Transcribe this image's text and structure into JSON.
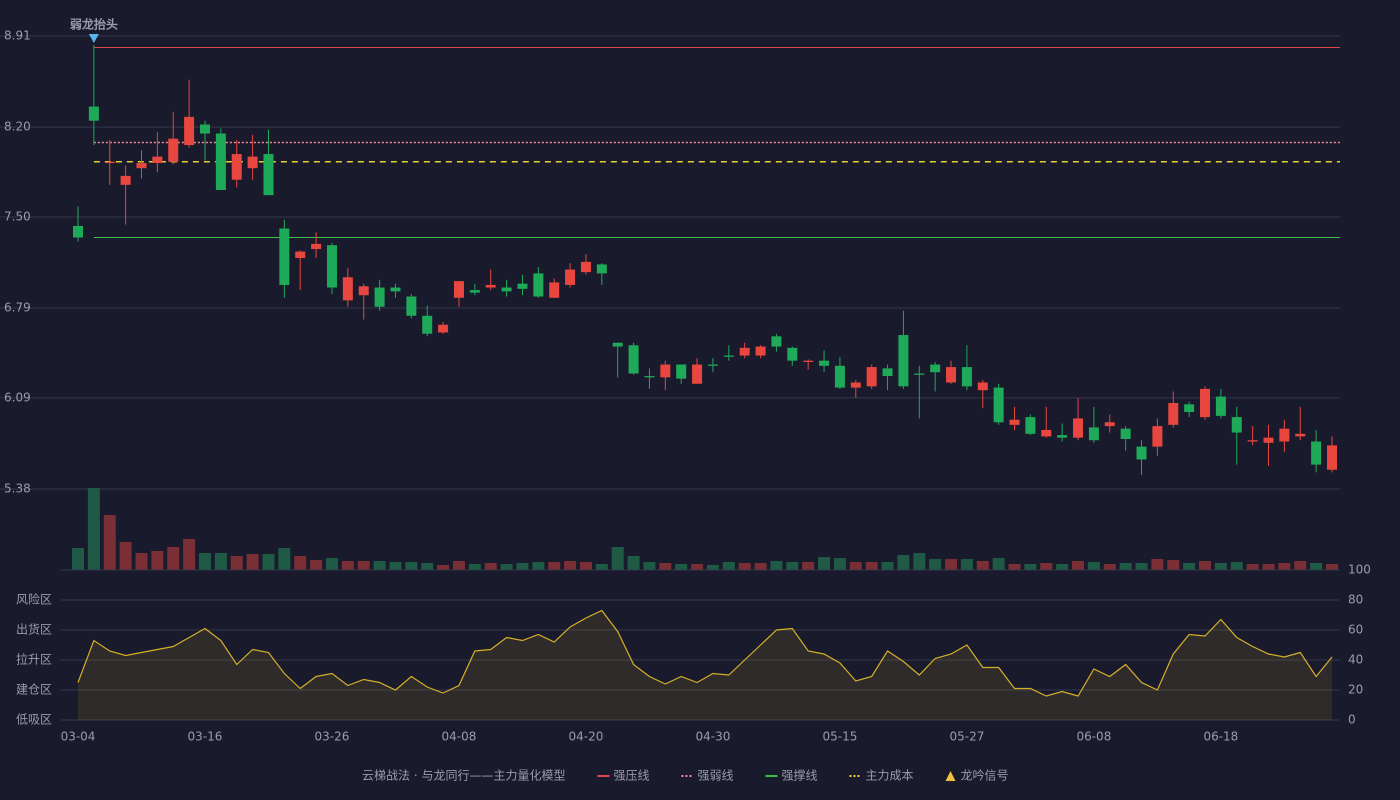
{
  "chart_data": [
    {
      "type": "candlestick",
      "ylim": [
        5.38,
        8.91
      ],
      "yticks": [
        8.91,
        {
          "value": 8.2,
          "label": "8.20"
        },
        {
          "value": 7.5,
          "label": "7.50"
        },
        6.79,
        6.09,
        5.38
      ],
      "up_color": "#e8473f",
      "down_color": "#1faa5a",
      "open": [
        7.43,
        8.36,
        7.92,
        7.75,
        7.88,
        7.92,
        7.93,
        8.06,
        8.22,
        8.15,
        7.79,
        7.88,
        7.99,
        7.41,
        7.18,
        7.25,
        7.28,
        6.85,
        6.89,
        6.95,
        6.95,
        6.88,
        6.73,
        6.6,
        6.87,
        6.93,
        6.95,
        6.95,
        6.98,
        7.06,
        6.87,
        6.97,
        7.07,
        7.13,
        6.52,
        6.5,
        6.26,
        6.25,
        6.35,
        6.2,
        6.35,
        6.42,
        6.42,
        6.42,
        6.57,
        6.48,
        6.37,
        6.38,
        6.34,
        6.17,
        6.18,
        6.32,
        6.58,
        6.28,
        6.35,
        6.21,
        6.33,
        6.15,
        6.17,
        5.88,
        5.94,
        5.79,
        5.8,
        5.78,
        5.86,
        5.87,
        5.85,
        5.71,
        5.71,
        5.88,
        6.04,
        5.94,
        6.1,
        5.94,
        5.75,
        5.74,
        5.75,
        5.79,
        5.75,
        5.53
      ],
      "high": [
        7.58,
        8.84,
        8.1,
        7.9,
        8.02,
        8.16,
        8.32,
        8.57,
        8.25,
        8.19,
        8.1,
        8.14,
        8.18,
        7.48,
        7.24,
        7.38,
        7.3,
        7.1,
        6.98,
        7.01,
        6.98,
        6.9,
        6.81,
        6.68,
        7.0,
        6.98,
        7.09,
        7.01,
        7.05,
        7.11,
        7.02,
        7.14,
        7.21,
        7.14,
        6.52,
        6.52,
        6.32,
        6.38,
        6.35,
        6.4,
        6.4,
        6.5,
        6.52,
        6.5,
        6.59,
        6.49,
        6.39,
        6.46,
        6.41,
        6.23,
        6.35,
        6.35,
        6.77,
        6.34,
        6.37,
        6.38,
        6.5,
        6.23,
        6.2,
        6.02,
        5.96,
        6.02,
        5.89,
        6.09,
        6.02,
        5.96,
        5.87,
        5.76,
        5.93,
        6.14,
        6.06,
        6.18,
        6.16,
        6.02,
        5.87,
        5.88,
        5.92,
        6.02,
        5.84,
        5.79
      ],
      "low": [
        7.31,
        8.06,
        7.75,
        7.44,
        7.8,
        7.85,
        7.91,
        8.04,
        7.94,
        7.71,
        7.73,
        7.79,
        7.67,
        6.87,
        6.93,
        7.18,
        6.9,
        6.8,
        6.7,
        6.77,
        6.87,
        6.71,
        6.57,
        6.59,
        6.8,
        6.89,
        6.93,
        6.88,
        6.89,
        6.87,
        6.87,
        6.95,
        7.05,
        6.97,
        6.25,
        6.27,
        6.16,
        6.15,
        6.2,
        6.2,
        6.29,
        6.38,
        6.4,
        6.4,
        6.45,
        6.34,
        6.31,
        6.29,
        6.16,
        6.09,
        6.16,
        6.15,
        6.16,
        5.93,
        6.14,
        6.2,
        6.15,
        6.01,
        5.88,
        5.84,
        5.8,
        5.78,
        5.75,
        5.76,
        5.74,
        5.82,
        5.68,
        5.49,
        5.64,
        5.86,
        5.94,
        5.92,
        5.93,
        5.57,
        5.72,
        5.56,
        5.67,
        5.76,
        5.51,
        5.51
      ],
      "close": [
        7.34,
        8.25,
        7.93,
        7.82,
        7.92,
        7.97,
        8.11,
        8.28,
        8.15,
        7.71,
        7.99,
        7.97,
        7.67,
        6.97,
        7.23,
        7.29,
        6.95,
        7.03,
        6.96,
        6.8,
        6.92,
        6.73,
        6.59,
        6.66,
        7.0,
        6.91,
        6.97,
        6.92,
        6.94,
        6.88,
        6.99,
        7.09,
        7.15,
        7.06,
        6.49,
        6.28,
        6.25,
        6.35,
        6.24,
        6.35,
        6.34,
        6.41,
        6.48,
        6.49,
        6.49,
        6.38,
        6.38,
        6.34,
        6.17,
        6.21,
        6.33,
        6.26,
        6.18,
        6.27,
        6.29,
        6.33,
        6.18,
        6.21,
        5.9,
        5.92,
        5.81,
        5.84,
        5.78,
        5.93,
        5.76,
        5.9,
        5.77,
        5.61,
        5.87,
        6.05,
        5.98,
        6.16,
        5.95,
        5.82,
        5.76,
        5.78,
        5.85,
        5.81,
        5.57,
        5.72
      ],
      "lines": [
        {
          "name": "强压线",
          "value": 8.82,
          "color": "#e0474c",
          "style": "solid"
        },
        {
          "name": "强弱线",
          "value": 8.08,
          "color": "#f08a9a",
          "style": "dotted"
        },
        {
          "name": "强撑线",
          "value": 7.34,
          "color": "#3cc04a",
          "style": "solid"
        },
        {
          "name": "主力成本",
          "value": 7.93,
          "color": "#e8d030",
          "style": "dashed"
        }
      ],
      "signal": {
        "name": "龙吟信号",
        "color": "#f0c040",
        "marker_color": "#5ab4f0",
        "points": [
          {
            "index": 1,
            "label": "弱龙抬头"
          }
        ]
      },
      "legend_title": "云梯战法 · 与龙同行——主力量化模型"
    },
    {
      "type": "volume",
      "up_color": "#7a2f36",
      "down_color": "#1f5a46",
      "values": [
        22,
        82,
        55,
        28,
        17,
        19,
        23,
        31,
        17,
        17,
        14,
        16,
        16,
        22,
        14,
        10,
        12,
        9,
        9,
        9,
        8,
        8,
        7,
        5,
        9,
        6,
        7,
        6,
        7,
        8,
        8,
        9,
        8,
        6,
        23,
        14,
        8,
        7,
        6,
        6,
        5,
        8,
        7,
        7,
        9,
        8,
        8,
        13,
        12,
        8,
        8,
        8,
        15,
        17,
        11,
        11,
        11,
        9,
        12,
        6,
        6,
        7,
        6,
        9,
        8,
        6,
        7,
        7,
        11,
        10,
        7,
        9,
        7,
        8,
        6,
        6,
        7,
        9,
        7,
        6
      ]
    },
    {
      "type": "line",
      "color": "#d4b028",
      "categories": [
        "03-04",
        null,
        null,
        null,
        null,
        null,
        null,
        null,
        "03-16",
        null,
        null,
        null,
        null,
        null,
        null,
        null,
        "03-26",
        null,
        null,
        null,
        null,
        null,
        null,
        null,
        "04-08",
        null,
        null,
        null,
        null,
        null,
        null,
        null,
        "04-20",
        null,
        null,
        null,
        null,
        null,
        null,
        null,
        "04-30",
        null,
        null,
        null,
        null,
        null,
        null,
        null,
        "05-15",
        null,
        null,
        null,
        null,
        null,
        null,
        null,
        "05-27",
        null,
        null,
        null,
        null,
        null,
        null,
        null,
        "06-08",
        null,
        null,
        null,
        null,
        null,
        null,
        null,
        "06-18",
        null,
        null,
        null,
        null,
        null,
        null,
        null
      ],
      "values": [
        25,
        53,
        46,
        43,
        45,
        47,
        49,
        55,
        61,
        53,
        37,
        47,
        45,
        31,
        21,
        29,
        31,
        23,
        27,
        25,
        20,
        29,
        22,
        18,
        23,
        46,
        47,
        55,
        53,
        57,
        52,
        62,
        68,
        73,
        59,
        37,
        29,
        24,
        29,
        25,
        31,
        30,
        40,
        50,
        60,
        61,
        46,
        44,
        38,
        26,
        29,
        46,
        39,
        30,
        41,
        44,
        50,
        35,
        35,
        21,
        21,
        16,
        19,
        16,
        34,
        29,
        37,
        25,
        20,
        44,
        57,
        56,
        67,
        55,
        49,
        44,
        42,
        45,
        29,
        42
      ],
      "ylim": [
        0,
        100
      ],
      "yticks": [
        0,
        20,
        40,
        60,
        80,
        100
      ],
      "ytick_colors": [
        "#e84848",
        "#e8a030",
        "#4aa0f0",
        "#e040e0",
        "#e8a030",
        "#30e040"
      ],
      "zones": [
        {
          "value": 80,
          "label": "风险区",
          "color": "#e8a030"
        },
        {
          "value": 60,
          "label": "出货区",
          "color": "#e040e0"
        },
        {
          "value": 40,
          "label": "拉升区",
          "color": "#4aa0f0"
        },
        {
          "value": 20,
          "label": "建仓区",
          "color": "#e84848"
        },
        {
          "value": 0,
          "label": "低吸区",
          "color": "#e84848"
        }
      ]
    }
  ]
}
